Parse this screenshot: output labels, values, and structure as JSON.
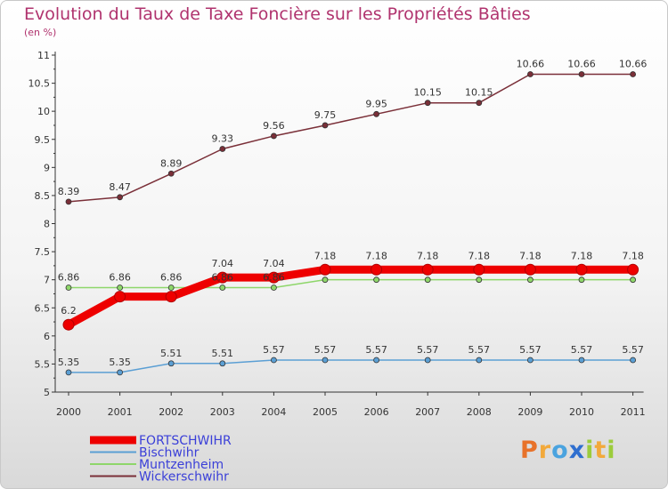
{
  "chart_data": {
    "type": "line",
    "title": "Evolution du Taux de Taxe Foncière sur les Propriétés Bâties",
    "subtitle": "(en %)",
    "x": [
      "2000",
      "2001",
      "2002",
      "2003",
      "2004",
      "2005",
      "2006",
      "2007",
      "2008",
      "2009",
      "2010",
      "2011"
    ],
    "ylim": [
      5,
      11
    ],
    "yticks": [
      "5",
      "5.5",
      "6",
      "6.5",
      "7",
      "7.5",
      "8",
      "8.5",
      "9",
      "9.5",
      "10",
      "10.5",
      "11"
    ],
    "grid": false,
    "legend": "bottom-left",
    "series": [
      {
        "name": "FORTSCHWIHR",
        "color": "#ee0000",
        "values": [
          6.2,
          6.7,
          6.7,
          7.04,
          7.04,
          7.18,
          7.18,
          7.18,
          7.18,
          7.18,
          7.18,
          7.18
        ],
        "labels": [
          "6.2",
          "",
          "",
          "7.04",
          "7.04",
          "7.18",
          "7.18",
          "7.18",
          "7.18",
          "7.18",
          "7.18",
          "7.18"
        ]
      },
      {
        "name": "Bischwihr",
        "color": "#5b9fd4",
        "values": [
          5.35,
          5.35,
          5.51,
          5.51,
          5.57,
          5.57,
          5.57,
          5.57,
          5.57,
          5.57,
          5.57,
          5.57
        ],
        "labels": [
          "5.35",
          "5.35",
          "5.51",
          "5.51",
          "5.57",
          "5.57",
          "5.57",
          "5.57",
          "5.57",
          "5.57",
          "5.57",
          "5.57"
        ]
      },
      {
        "name": "Muntzenheim",
        "color": "#8ed66a",
        "values": [
          6.86,
          6.86,
          6.86,
          6.86,
          6.86,
          7.0,
          7.0,
          7.0,
          7.0,
          7.0,
          7.0,
          7.0
        ],
        "labels": [
          "6.86",
          "6.86",
          "6.86",
          "6.86",
          "6.86",
          "",
          "",
          "",
          "",
          "",
          "",
          ""
        ]
      },
      {
        "name": "Wickerschwihr",
        "color": "#7a2f38",
        "values": [
          8.39,
          8.47,
          8.89,
          9.33,
          9.56,
          9.75,
          9.95,
          10.15,
          10.15,
          10.66,
          10.66,
          10.66
        ],
        "labels": [
          "8.39",
          "8.47",
          "8.89",
          "9.33",
          "9.56",
          "9.75",
          "9.95",
          "10.15",
          "10.15",
          "10.66",
          "10.66",
          "10.66"
        ]
      }
    ]
  },
  "logo": {
    "text": "Proxiti",
    "letters": [
      {
        "ch": "P",
        "color": "#e8722a"
      },
      {
        "ch": "r",
        "color": "#f2a93b"
      },
      {
        "ch": "o",
        "color": "#4aa3df"
      },
      {
        "ch": "x",
        "color": "#2f6fcf"
      },
      {
        "ch": "i",
        "color": "#9ccc3c"
      },
      {
        "ch": "t",
        "color": "#f2a93b"
      },
      {
        "ch": "i",
        "color": "#9ccc3c"
      }
    ]
  }
}
